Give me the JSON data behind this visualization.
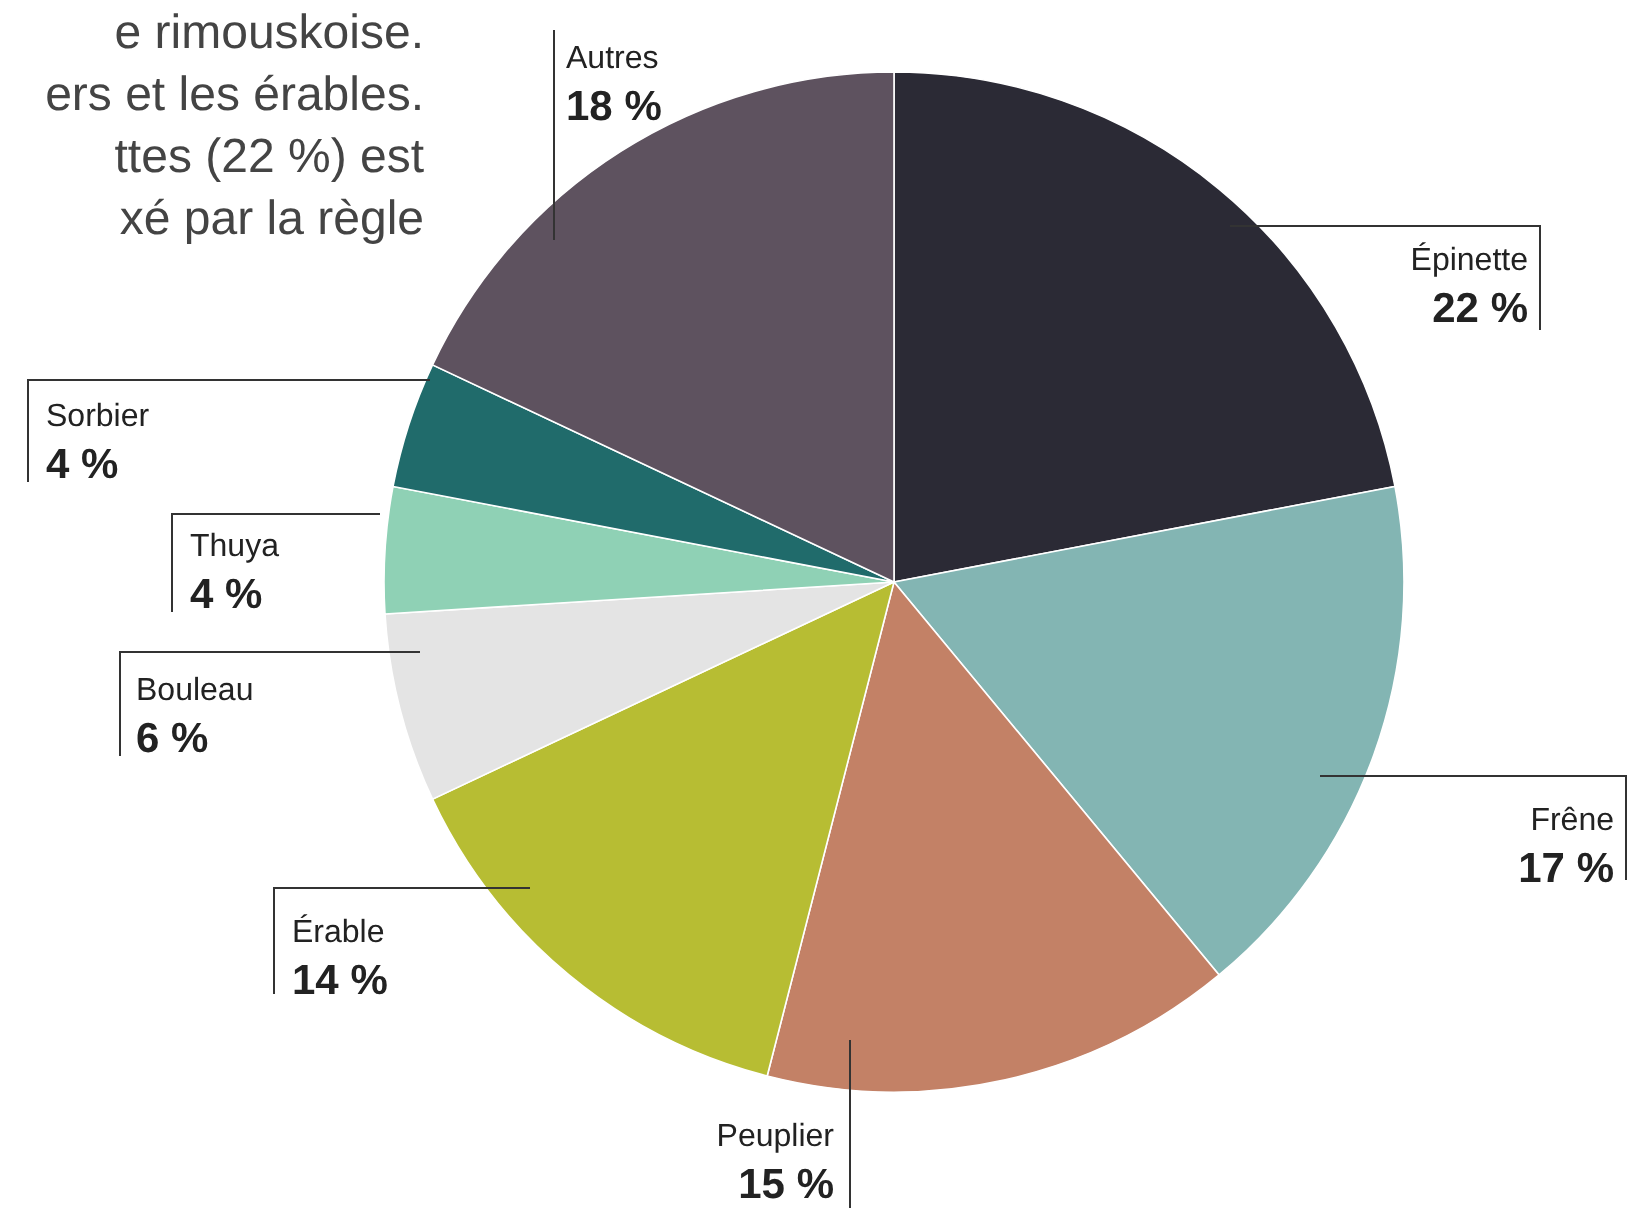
{
  "chart_data": {
    "type": "pie",
    "categories": [
      "Épinette",
      "Frêne",
      "Peuplier",
      "Érable",
      "Bouleau",
      "Thuya",
      "Sorbier",
      "Autres"
    ],
    "values": [
      22,
      17,
      15,
      14,
      6,
      4,
      4,
      18
    ],
    "value_labels": [
      "22 %",
      "17 %",
      "15 %",
      "14 %",
      "6 %",
      "4 %",
      "4 %",
      "18 %"
    ],
    "colors": [
      "#2b2a35",
      "#83b5b3",
      "#c38166",
      "#b7bd33",
      "#e4e4e4",
      "#8fd1b5",
      "#206b6b",
      "#5e525f"
    ],
    "annotations": [
      "e rimouskoise.",
      "ers et les érables.",
      "ttes (22 %) est",
      "xé par la règle"
    ]
  }
}
